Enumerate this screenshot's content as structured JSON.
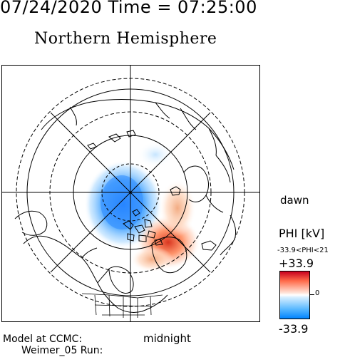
{
  "header": {
    "datetime": "07/24/2020 Time = 07:25:00",
    "hemisphere": "Northern Hemisphere"
  },
  "map": {
    "orientation": {
      "dawn_label": "dawn",
      "midnight_label": "midnight"
    },
    "colors": {
      "positive": "#d7261e",
      "negative": "#0a84ff",
      "coastline": "#000000"
    }
  },
  "colorbar": {
    "title": "PHI [kV]",
    "range_text": "-33.9<PHI<21",
    "max_label": "+33.9",
    "zero_label": "0",
    "min_label": "-33.9"
  },
  "footer": {
    "line1": "Model at CCMC:",
    "line2": "Weimer_05 Run:"
  }
}
